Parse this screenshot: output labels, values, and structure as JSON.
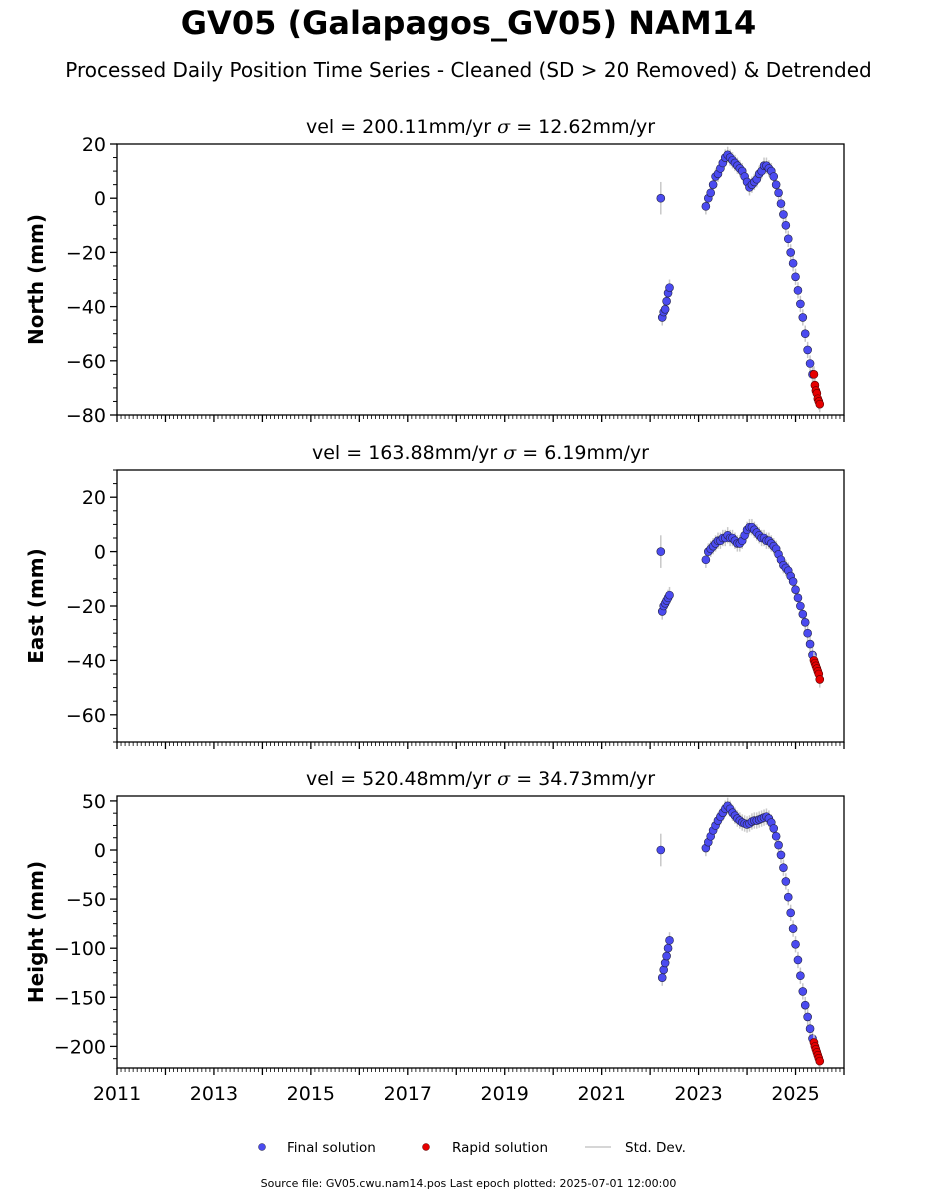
{
  "title": "GV05 (Galapagos_GV05) NAM14",
  "subtitle": "Processed Daily Position Time Series - Cleaned (SD > 20 Removed) & Detrended",
  "footer": "Source file: GV05.cwu.nam14.pos  Last epoch plotted: 2025-07-01 12:00:00",
  "colors": {
    "final": "#4b4bf0",
    "rapid": "#e60000",
    "stddev": "#c8c8c8"
  },
  "legend": {
    "placement": "bottom-center",
    "final_label": "Final solution",
    "rapid_label": "Rapid solution",
    "std_label": "Std. Dev."
  },
  "chart_data": [
    {
      "type": "scatter",
      "ylabel": "North (mm)",
      "vel_label": "vel = 200.11mm/yr",
      "sigma_label": "= 12.62mm/yr",
      "xlim": [
        2011,
        2026
      ],
      "ylim": [
        -80,
        20
      ],
      "yticks": [
        -80,
        -60,
        -40,
        -20,
        0,
        20
      ],
      "series": [
        {
          "name": "Final solution",
          "points": [
            [
              2022.22,
              0
            ],
            [
              2022.25,
              -44
            ],
            [
              2022.28,
              -42
            ],
            [
              2022.31,
              -41
            ],
            [
              2022.34,
              -38
            ],
            [
              2022.37,
              -35
            ],
            [
              2022.4,
              -33
            ],
            [
              2023.15,
              -3
            ],
            [
              2023.2,
              0
            ],
            [
              2023.25,
              2
            ],
            [
              2023.3,
              5
            ],
            [
              2023.35,
              8
            ],
            [
              2023.4,
              9
            ],
            [
              2023.45,
              11
            ],
            [
              2023.5,
              13
            ],
            [
              2023.55,
              15
            ],
            [
              2023.6,
              16
            ],
            [
              2023.65,
              15
            ],
            [
              2023.7,
              14
            ],
            [
              2023.75,
              13
            ],
            [
              2023.8,
              12
            ],
            [
              2023.85,
              11
            ],
            [
              2023.9,
              10
            ],
            [
              2023.95,
              8
            ],
            [
              2024.0,
              6
            ],
            [
              2024.05,
              4
            ],
            [
              2024.1,
              5
            ],
            [
              2024.15,
              6
            ],
            [
              2024.2,
              7
            ],
            [
              2024.25,
              9
            ],
            [
              2024.3,
              10
            ],
            [
              2024.35,
              12
            ],
            [
              2024.4,
              12
            ],
            [
              2024.45,
              11
            ],
            [
              2024.5,
              10
            ],
            [
              2024.55,
              8
            ],
            [
              2024.6,
              5
            ],
            [
              2024.65,
              2
            ],
            [
              2024.7,
              -2
            ],
            [
              2024.75,
              -6
            ],
            [
              2024.8,
              -10
            ],
            [
              2024.85,
              -15
            ],
            [
              2024.9,
              -20
            ],
            [
              2024.95,
              -24
            ],
            [
              2025.0,
              -29
            ],
            [
              2025.05,
              -34
            ],
            [
              2025.1,
              -39
            ],
            [
              2025.15,
              -44
            ],
            [
              2025.2,
              -50
            ],
            [
              2025.25,
              -56
            ],
            [
              2025.3,
              -61
            ],
            [
              2025.35,
              -65
            ]
          ]
        },
        {
          "name": "Rapid solution",
          "points": [
            [
              2025.38,
              -65
            ],
            [
              2025.4,
              -69
            ],
            [
              2025.42,
              -71
            ],
            [
              2025.44,
              -72
            ],
            [
              2025.46,
              -74
            ],
            [
              2025.48,
              -75
            ],
            [
              2025.5,
              -76
            ]
          ]
        }
      ]
    },
    {
      "type": "scatter",
      "ylabel": "East (mm)",
      "vel_label": "vel = 163.88mm/yr",
      "sigma_label": "= 6.19mm/yr",
      "xlim": [
        2011,
        2026
      ],
      "ylim": [
        -70,
        30
      ],
      "yticks": [
        -60,
        -40,
        -20,
        0,
        20
      ],
      "series": [
        {
          "name": "Final solution",
          "points": [
            [
              2022.22,
              0
            ],
            [
              2022.25,
              -22
            ],
            [
              2022.28,
              -20
            ],
            [
              2022.31,
              -19
            ],
            [
              2022.34,
              -18
            ],
            [
              2022.37,
              -17
            ],
            [
              2022.4,
              -16
            ],
            [
              2023.15,
              -3
            ],
            [
              2023.2,
              0
            ],
            [
              2023.25,
              1
            ],
            [
              2023.3,
              2
            ],
            [
              2023.35,
              3
            ],
            [
              2023.4,
              4
            ],
            [
              2023.45,
              4
            ],
            [
              2023.5,
              5
            ],
            [
              2023.55,
              5
            ],
            [
              2023.6,
              6
            ],
            [
              2023.65,
              5
            ],
            [
              2023.7,
              5
            ],
            [
              2023.75,
              4
            ],
            [
              2023.8,
              3
            ],
            [
              2023.85,
              3
            ],
            [
              2023.9,
              4
            ],
            [
              2023.95,
              6
            ],
            [
              2024.0,
              8
            ],
            [
              2024.05,
              9
            ],
            [
              2024.1,
              9
            ],
            [
              2024.15,
              8
            ],
            [
              2024.2,
              7
            ],
            [
              2024.25,
              6
            ],
            [
              2024.3,
              5
            ],
            [
              2024.35,
              5
            ],
            [
              2024.4,
              4
            ],
            [
              2024.45,
              4
            ],
            [
              2024.5,
              3
            ],
            [
              2024.55,
              2
            ],
            [
              2024.6,
              1
            ],
            [
              2024.65,
              -1
            ],
            [
              2024.7,
              -3
            ],
            [
              2024.75,
              -5
            ],
            [
              2024.8,
              -6
            ],
            [
              2024.85,
              -7
            ],
            [
              2024.9,
              -9
            ],
            [
              2024.95,
              -11
            ],
            [
              2025.0,
              -14
            ],
            [
              2025.05,
              -17
            ],
            [
              2025.1,
              -20
            ],
            [
              2025.15,
              -23
            ],
            [
              2025.2,
              -26
            ],
            [
              2025.25,
              -30
            ],
            [
              2025.3,
              -34
            ],
            [
              2025.35,
              -38
            ]
          ]
        },
        {
          "name": "Rapid solution",
          "points": [
            [
              2025.38,
              -40
            ],
            [
              2025.4,
              -41
            ],
            [
              2025.42,
              -42
            ],
            [
              2025.44,
              -43
            ],
            [
              2025.46,
              -44
            ],
            [
              2025.48,
              -45
            ],
            [
              2025.5,
              -47
            ]
          ]
        }
      ]
    },
    {
      "type": "scatter",
      "ylabel": "Height (mm)",
      "vel_label": "vel = 520.48mm/yr",
      "sigma_label": "= 34.73mm/yr",
      "xlim": [
        2011,
        2026
      ],
      "ylim": [
        -222,
        55
      ],
      "yticks": [
        -200,
        -150,
        -100,
        -50,
        0,
        50
      ],
      "xticks": [
        2011,
        2013,
        2015,
        2017,
        2019,
        2021,
        2023,
        2025
      ],
      "series": [
        {
          "name": "Final solution",
          "points": [
            [
              2022.22,
              0
            ],
            [
              2022.25,
              -130
            ],
            [
              2022.28,
              -122
            ],
            [
              2022.31,
              -115
            ],
            [
              2022.34,
              -108
            ],
            [
              2022.37,
              -100
            ],
            [
              2022.4,
              -92
            ],
            [
              2023.15,
              2
            ],
            [
              2023.2,
              8
            ],
            [
              2023.25,
              14
            ],
            [
              2023.3,
              20
            ],
            [
              2023.35,
              25
            ],
            [
              2023.4,
              30
            ],
            [
              2023.45,
              34
            ],
            [
              2023.5,
              38
            ],
            [
              2023.55,
              42
            ],
            [
              2023.6,
              45
            ],
            [
              2023.65,
              42
            ],
            [
              2023.7,
              38
            ],
            [
              2023.75,
              35
            ],
            [
              2023.8,
              32
            ],
            [
              2023.85,
              30
            ],
            [
              2023.9,
              28
            ],
            [
              2023.95,
              27
            ],
            [
              2024.0,
              26
            ],
            [
              2024.05,
              27
            ],
            [
              2024.1,
              29
            ],
            [
              2024.15,
              30
            ],
            [
              2024.2,
              30
            ],
            [
              2024.25,
              31
            ],
            [
              2024.3,
              32
            ],
            [
              2024.35,
              33
            ],
            [
              2024.4,
              34
            ],
            [
              2024.45,
              32
            ],
            [
              2024.5,
              28
            ],
            [
              2024.55,
              22
            ],
            [
              2024.6,
              14
            ],
            [
              2024.65,
              5
            ],
            [
              2024.7,
              -5
            ],
            [
              2024.75,
              -18
            ],
            [
              2024.8,
              -32
            ],
            [
              2024.85,
              -48
            ],
            [
              2024.9,
              -64
            ],
            [
              2024.95,
              -80
            ],
            [
              2025.0,
              -96
            ],
            [
              2025.05,
              -112
            ],
            [
              2025.1,
              -128
            ],
            [
              2025.15,
              -144
            ],
            [
              2025.2,
              -158
            ],
            [
              2025.25,
              -170
            ],
            [
              2025.3,
              -182
            ],
            [
              2025.35,
              -192
            ]
          ]
        },
        {
          "name": "Rapid solution",
          "points": [
            [
              2025.38,
              -196
            ],
            [
              2025.4,
              -200
            ],
            [
              2025.42,
              -203
            ],
            [
              2025.44,
              -206
            ],
            [
              2025.46,
              -209
            ],
            [
              2025.48,
              -212
            ],
            [
              2025.5,
              -215
            ]
          ]
        }
      ]
    }
  ]
}
